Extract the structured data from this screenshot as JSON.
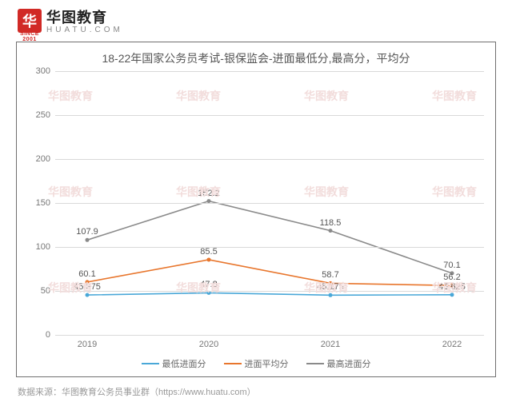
{
  "logo": {
    "mark": "华",
    "year": "SINCE 2001",
    "cn": "华图教育",
    "en": "HUATU.COM"
  },
  "chart": {
    "type": "line",
    "title": "18-22年国家公务员考试-银保监会-进面最低分,最高分，平均分",
    "title_fontsize": 14,
    "title_color": "#555555",
    "background_color": "#ffffff",
    "frame_color": "#706f6f",
    "grid_color": "#d9d9d9",
    "y": {
      "min": 0,
      "max": 300,
      "step": 50
    },
    "x_categories": [
      "2019",
      "2020",
      "2021",
      "2022"
    ],
    "label_fontsize": 11,
    "label_color": "#777777",
    "point_label_color": "#555555",
    "line_width": 1.6,
    "series": [
      {
        "key": "min",
        "name": "最低进面分",
        "color": "#4aa8d8",
        "values": [
          45.375,
          47.8,
          45.175,
          45.625
        ]
      },
      {
        "key": "avg",
        "name": "进面平均分",
        "color": "#e8762d",
        "values": [
          60.1,
          85.5,
          58.7,
          56.2
        ]
      },
      {
        "key": "max",
        "name": "最高进面分",
        "color": "#8a8a8a",
        "values": [
          107.9,
          152.2,
          118.5,
          70.1
        ]
      }
    ],
    "legend_position": "bottom-center"
  },
  "footer": "数据来源：华图教育公务员事业群（https://www.huatu.com）",
  "watermark_text": "华图教育"
}
